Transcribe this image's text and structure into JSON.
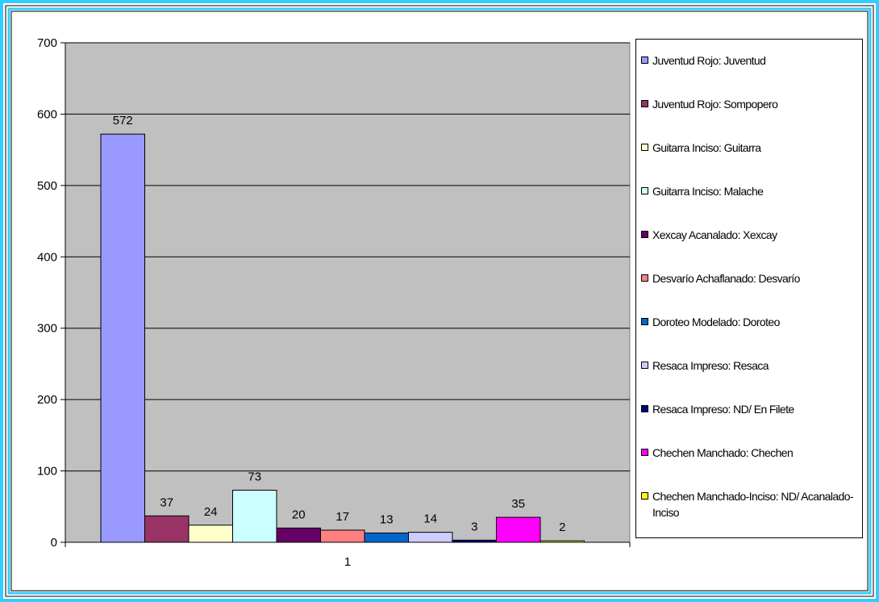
{
  "chart_data": {
    "type": "bar",
    "categories": [
      "1"
    ],
    "ylim": [
      0,
      700
    ],
    "yticks": [
      0,
      100,
      200,
      300,
      400,
      500,
      600,
      700
    ],
    "grid": true,
    "legend_position": "right",
    "plot_background": "#c0c0c0",
    "frame_color": "#33ccff",
    "series": [
      {
        "name": "Juventud Rojo: Juventud",
        "values": [
          572
        ],
        "color": "#9999ff"
      },
      {
        "name": "Juventud Rojo: Sompopero",
        "values": [
          37
        ],
        "color": "#993366"
      },
      {
        "name": "Guitarra Inciso: Guitarra",
        "values": [
          24
        ],
        "color": "#ffffcc"
      },
      {
        "name": "Guitarra Inciso: Malache",
        "values": [
          73
        ],
        "color": "#ccffff"
      },
      {
        "name": "Xexcay Acanalado: Xexcay",
        "values": [
          20
        ],
        "color": "#660066"
      },
      {
        "name": "Desvarío Achaflanado: Desvarío",
        "values": [
          17
        ],
        "color": "#ff8080"
      },
      {
        "name": "Doroteo Modelado: Doroteo",
        "values": [
          13
        ],
        "color": "#0066cc"
      },
      {
        "name": "Resaca Impreso: Resaca",
        "values": [
          14
        ],
        "color": "#ccccff"
      },
      {
        "name": "Resaca Impreso: ND/ En Filete",
        "values": [
          3
        ],
        "color": "#000080"
      },
      {
        "name": "Chechen Manchado: Chechen",
        "values": [
          35
        ],
        "color": "#ff00ff"
      },
      {
        "name": "Chechen Manchado-Inciso: ND/ Acanalado-Inciso",
        "values": [
          2
        ],
        "color": "#ffff00"
      }
    ]
  }
}
